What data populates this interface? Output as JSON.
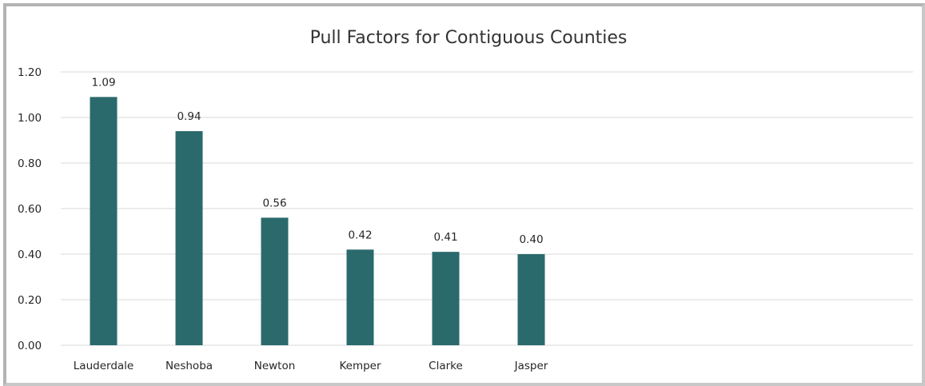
{
  "chart_data": {
    "type": "bar",
    "title": "Pull Factors for Contiguous Counties",
    "xlabel": "",
    "ylabel": "",
    "categories": [
      "Lauderdale",
      "Neshoba",
      "Newton",
      "Kemper",
      "Clarke",
      "Jasper"
    ],
    "values": [
      1.09,
      0.94,
      0.56,
      0.42,
      0.41,
      0.4
    ],
    "data_labels": [
      "1.09",
      "0.94",
      "0.56",
      "0.42",
      "0.41",
      "0.40"
    ],
    "y_ticks": [
      "0.00",
      "0.20",
      "0.40",
      "0.60",
      "0.80",
      "1.00",
      "1.20"
    ],
    "ylim": [
      0,
      1.2
    ],
    "grid": true,
    "legend": "none",
    "bar_color": "#2b6a6c"
  }
}
